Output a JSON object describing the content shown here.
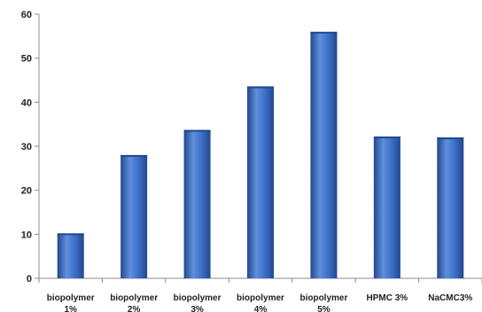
{
  "chart_data": {
    "type": "bar",
    "categories": [
      [
        "biopolymer",
        "1%"
      ],
      [
        "biopolymer",
        "2%"
      ],
      [
        "biopolymer",
        "3%"
      ],
      [
        "biopolymer",
        "4%"
      ],
      [
        "biopolymer",
        "5%"
      ],
      [
        "HPMC 3%"
      ],
      [
        "NaCMC3%"
      ]
    ],
    "values": [
      10.2,
      28,
      33.7,
      43.6,
      56,
      32.2,
      32
    ],
    "title": "",
    "xlabel": "",
    "ylabel": "",
    "ylim": [
      0,
      60
    ],
    "yticks": [
      0,
      10,
      20,
      30,
      40,
      50,
      60
    ],
    "grid": false,
    "legend": "none",
    "colors": {
      "bar_light": "#5f8fdc",
      "bar_main": "#3a6cc4",
      "bar_dark": "#22478e",
      "axis": "#8c8c8c"
    }
  }
}
